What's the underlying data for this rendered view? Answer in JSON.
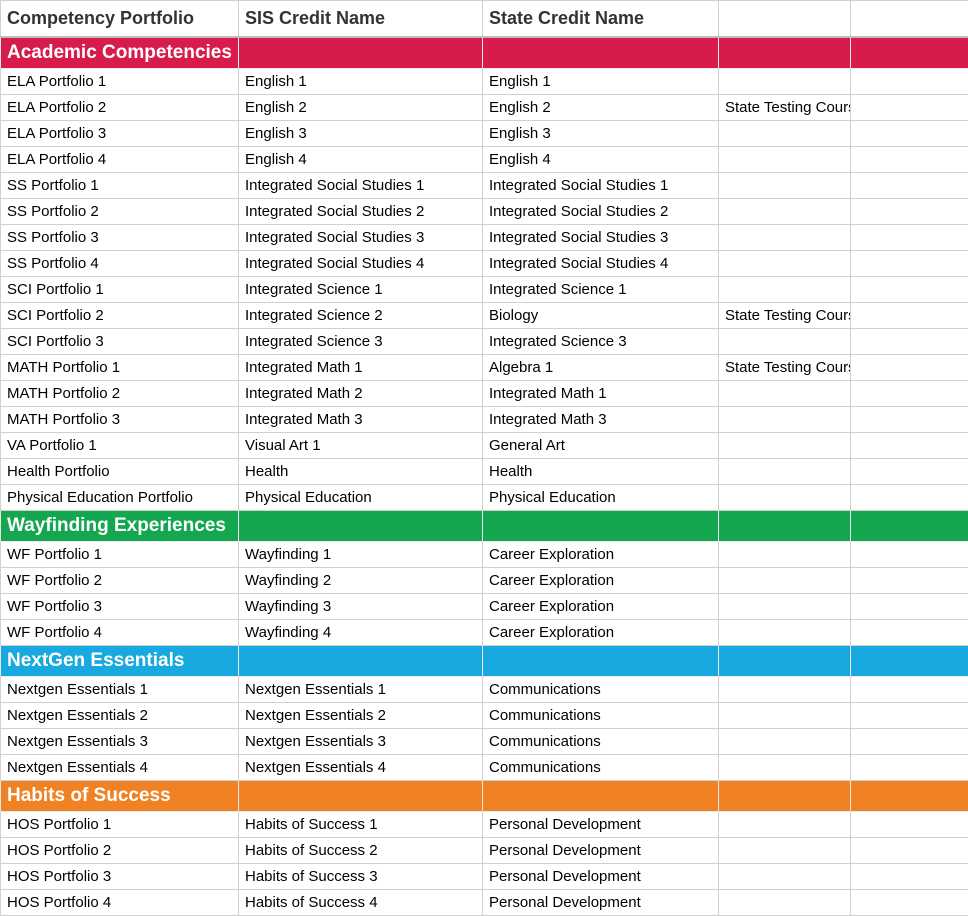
{
  "columns": [
    "Competency Portfolio",
    "SIS Credit Name",
    "State Credit Name",
    "",
    ""
  ],
  "header_fontsize": 18,
  "section_fontsize": 19,
  "cell_fontsize": 15,
  "gridline_color": "#d0d0d0",
  "header_color": "#333333",
  "sections": [
    {
      "label": "Academic Competencies",
      "bg_color": "#d71b4a",
      "text_color": "#ffffff",
      "rows": [
        [
          "ELA Portfolio 1",
          "English 1",
          "English 1",
          "",
          ""
        ],
        [
          "ELA Portfolio 2",
          "English 2",
          "English 2",
          "State Testing Course Required",
          ""
        ],
        [
          "ELA Portfolio 3",
          "English 3",
          "English 3",
          "",
          ""
        ],
        [
          "ELA Portfolio 4",
          "English 4",
          "English 4",
          "",
          ""
        ],
        [
          "SS Portfolio 1",
          "Integrated Social Studies 1",
          "Integrated Social Studies 1",
          "",
          ""
        ],
        [
          "SS Portfolio 2",
          "Integrated Social Studies 2",
          "Integrated Social Studies 2",
          "",
          ""
        ],
        [
          "SS Portfolio 3",
          "Integrated Social Studies 3",
          "Integrated Social Studies 3",
          "",
          ""
        ],
        [
          "SS Portfolio 4",
          "Integrated Social Studies 4",
          "Integrated Social Studies 4",
          "",
          ""
        ],
        [
          "SCI Portfolio 1",
          "Integrated Science 1",
          "Integrated Science 1",
          "",
          ""
        ],
        [
          "SCI Portfolio 2",
          "Integrated Science 2",
          "Biology",
          "State Testing Course Required",
          ""
        ],
        [
          "SCI Portfolio 3",
          "Integrated Science 3",
          "Integrated Science 3",
          "",
          ""
        ],
        [
          "MATH Portfolio 1",
          "Integrated Math 1",
          "Algebra 1",
          "State Testing Course Required",
          ""
        ],
        [
          "MATH Portfolio 2",
          "Integrated Math 2",
          "Integrated Math 1",
          "",
          ""
        ],
        [
          "MATH Portfolio 3",
          "Integrated Math 3",
          "Integrated Math 3",
          "",
          ""
        ],
        [
          "VA Portfolio 1",
          "Visual Art 1",
          "General Art",
          "",
          ""
        ],
        [
          "Health Portfolio",
          "Health",
          "Health",
          "",
          ""
        ],
        [
          "Physical Education Portfolio",
          "Physical Education",
          "Physical Education",
          "",
          ""
        ]
      ]
    },
    {
      "label": "Wayfinding Experiences",
      "bg_color": "#15a750",
      "text_color": "#ffffff",
      "rows": [
        [
          "WF Portfolio 1",
          "Wayfinding 1",
          "Career Exploration",
          "",
          ""
        ],
        [
          "WF Portfolio 2",
          "Wayfinding 2",
          "Career Exploration",
          "",
          ""
        ],
        [
          "WF Portfolio 3",
          "Wayfinding 3",
          "Career Exploration",
          "",
          ""
        ],
        [
          "WF Portfolio 4",
          "Wayfinding 4",
          "Career Exploration",
          "",
          ""
        ]
      ]
    },
    {
      "label": "NextGen Essentials",
      "bg_color": "#17a9e0",
      "text_color": "#ffffff",
      "rows": [
        [
          "Nextgen Essentials 1",
          "Nextgen Essentials 1",
          "Communications",
          "",
          ""
        ],
        [
          "Nextgen Essentials 2",
          "Nextgen Essentials 2",
          "Communications",
          "",
          ""
        ],
        [
          "Nextgen Essentials 3",
          "Nextgen Essentials 3",
          "Communications",
          "",
          ""
        ],
        [
          "Nextgen Essentials 4",
          "Nextgen Essentials 4",
          "Communications",
          "",
          ""
        ]
      ]
    },
    {
      "label": "Habits of Success",
      "bg_color": "#f08223",
      "text_color": "#ffffff",
      "rows": [
        [
          "HOS Portfolio 1",
          "Habits of Success 1",
          "Personal Development",
          "",
          ""
        ],
        [
          "HOS Portfolio 2",
          "Habits of Success 2",
          "Personal Development",
          "",
          ""
        ],
        [
          "HOS Portfolio 3",
          "Habits of Success 3",
          "Personal Development",
          "",
          ""
        ],
        [
          "HOS Portfolio 4",
          "Habits of Success 4",
          "Personal Development",
          "",
          ""
        ]
      ]
    }
  ]
}
